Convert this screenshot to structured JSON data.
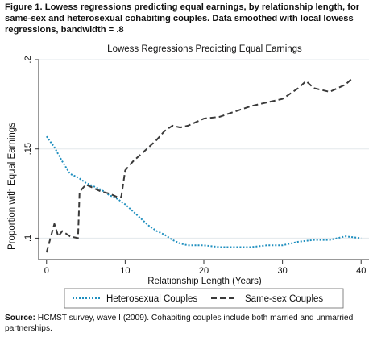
{
  "figure": {
    "caption": "Figure 1.  Lowess regressions predicting equal earnings, by relationship length, for same-sex and heterosexual cohabiting couples. Data smoothed with local lowess regressions, bandwidth = .8",
    "source_label": "Source:",
    "source_text": " HCMST survey, wave I (2009). Cohabiting couples include both married and unmarried partnerships."
  },
  "chart_data": {
    "type": "line",
    "title": "Lowess Regressions Predicting Equal Earnings",
    "xlabel": "Relationship Length (Years)",
    "ylabel": "Proportion with Equal Earnings",
    "xlim": [
      -1,
      41
    ],
    "ylim": [
      0.088,
      0.2
    ],
    "xticks": [
      0,
      10,
      20,
      30,
      40
    ],
    "xtick_labels": [
      "0",
      "10",
      "20",
      "30",
      "40"
    ],
    "yticks": [
      0.1,
      0.15,
      0.2
    ],
    "ytick_labels": [
      ".1",
      ".15",
      ".2"
    ],
    "grid": "horizontal",
    "legend_position": "bottom",
    "series": [
      {
        "name": "Heterosexual Couples",
        "color": "#1f8fbf",
        "dash": "dotted",
        "x": [
          0,
          0.5,
          1,
          1.5,
          2,
          3,
          4,
          5,
          6,
          7,
          8,
          9,
          10,
          11,
          12,
          13,
          14,
          15,
          16,
          17,
          18,
          20,
          22,
          24,
          26,
          28,
          30,
          32,
          34,
          36,
          38,
          40
        ],
        "y": [
          0.157,
          0.154,
          0.151,
          0.147,
          0.143,
          0.136,
          0.134,
          0.131,
          0.129,
          0.127,
          0.124,
          0.122,
          0.119,
          0.115,
          0.111,
          0.107,
          0.104,
          0.102,
          0.099,
          0.097,
          0.096,
          0.096,
          0.095,
          0.095,
          0.095,
          0.096,
          0.096,
          0.098,
          0.099,
          0.099,
          0.101,
          0.1
        ]
      },
      {
        "name": "Same-sex Couples",
        "color": "#3a3a3a",
        "dash": "dashed",
        "x": [
          0,
          0.5,
          0.8,
          1,
          1.5,
          2,
          3,
          4,
          4.2,
          5,
          6,
          7,
          8,
          9,
          9.5,
          10,
          11,
          12,
          13,
          14,
          15,
          16,
          17,
          18,
          20,
          22,
          24,
          26,
          28,
          30,
          31,
          32,
          33,
          34,
          35,
          36,
          38,
          39
        ],
        "y": [
          0.092,
          0.1,
          0.105,
          0.108,
          0.101,
          0.104,
          0.101,
          0.1,
          0.126,
          0.13,
          0.128,
          0.126,
          0.125,
          0.123,
          0.123,
          0.138,
          0.143,
          0.147,
          0.151,
          0.155,
          0.16,
          0.163,
          0.162,
          0.163,
          0.167,
          0.168,
          0.171,
          0.174,
          0.176,
          0.178,
          0.181,
          0.184,
          0.188,
          0.184,
          0.183,
          0.182,
          0.186,
          0.19
        ]
      }
    ]
  }
}
